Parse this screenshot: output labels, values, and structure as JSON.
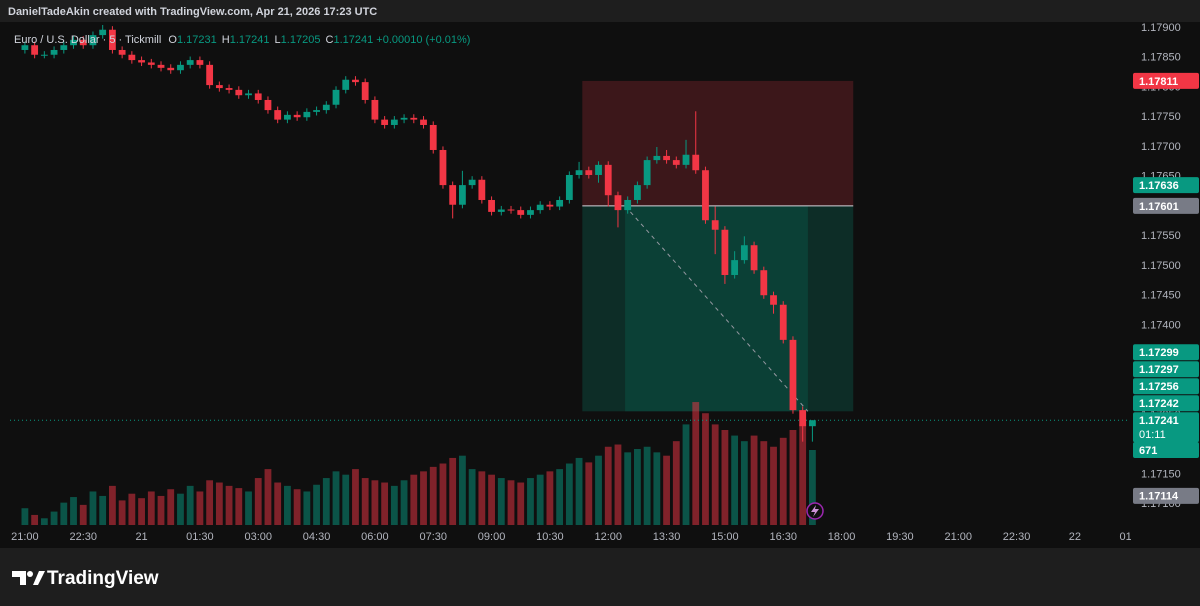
{
  "header": {
    "attribution": "DanielTadeAkin created with TradingView.com, Apr 21, 2026 17:23 UTC"
  },
  "footer": {
    "logo": "TradingView"
  },
  "chart_data": {
    "type": "candlestick",
    "symbol": "Euro / U.S. Dollar · 5 · Tickmill",
    "ohlc_letters": [
      "O",
      "H",
      "L",
      "C"
    ],
    "change": "+0.00010 (+0.01%)",
    "up_color": "#089981",
    "down_color": "#f23645",
    "x": [
      0,
      15,
      30,
      45,
      60,
      75,
      90,
      105,
      120,
      135,
      150,
      165,
      180,
      195,
      210,
      225,
      240,
      255,
      270,
      285,
      300,
      315,
      330,
      345,
      360,
      375,
      390,
      405,
      420,
      435,
      450,
      465,
      480,
      495,
      510,
      525,
      540,
      555,
      570,
      585,
      600,
      615,
      630,
      645,
      660,
      675,
      690,
      705,
      720,
      735,
      750,
      765,
      780,
      795,
      810,
      825,
      840,
      855,
      870,
      885,
      900,
      915,
      930,
      945,
      960,
      975,
      990,
      1005,
      1020,
      1035,
      1050,
      1065,
      1080,
      1095,
      1110,
      1125,
      1140,
      1155,
      1170,
      1185,
      1200,
      1215
    ],
    "open": [
      1.17863,
      1.17871,
      1.17855,
      1.17855,
      1.17863,
      1.17871,
      1.1788,
      1.17871,
      1.17888,
      1.17897,
      1.17863,
      1.17855,
      1.17846,
      1.17842,
      1.17838,
      1.17833,
      1.17829,
      1.17838,
      1.17846,
      1.17838,
      1.17804,
      1.17799,
      1.17796,
      1.17787,
      1.1779,
      1.17779,
      1.17762,
      1.17746,
      1.17754,
      1.1775,
      1.17759,
      1.17762,
      1.17771,
      1.17796,
      1.17813,
      1.17809,
      1.17779,
      1.17746,
      1.17737,
      1.17746,
      1.17749,
      1.17746,
      1.17737,
      1.17695,
      1.17636,
      1.17603,
      1.17636,
      1.17645,
      1.17611,
      1.17591,
      1.17595,
      1.17594,
      1.17586,
      1.17594,
      1.17603,
      1.176,
      1.17611,
      1.17653,
      1.17661,
      1.17653,
      1.1767,
      1.17619,
      1.17594,
      1.17611,
      1.17636,
      1.17678,
      1.17685,
      1.17678,
      1.1767,
      1.17687,
      1.17661,
      1.17577,
      1.17561,
      1.17485,
      1.1751,
      1.17535,
      1.17493,
      1.17451,
      1.17435,
      1.17376,
      1.17258,
      1.17231
    ],
    "high": [
      1.17877,
      1.17877,
      1.17861,
      1.17869,
      1.17877,
      1.17886,
      1.17886,
      1.17894,
      1.17905,
      1.17903,
      1.17869,
      1.17861,
      1.17852,
      1.17848,
      1.17844,
      1.17839,
      1.17844,
      1.17852,
      1.17852,
      1.17844,
      1.1781,
      1.17805,
      1.17802,
      1.17796,
      1.17796,
      1.17785,
      1.17768,
      1.1776,
      1.1776,
      1.17765,
      1.17768,
      1.17777,
      1.17802,
      1.17819,
      1.17819,
      1.17815,
      1.17785,
      1.17752,
      1.17752,
      1.17755,
      1.17755,
      1.17752,
      1.17743,
      1.17701,
      1.17642,
      1.1766,
      1.17651,
      1.17651,
      1.17617,
      1.17601,
      1.17601,
      1.176,
      1.176,
      1.17609,
      1.17609,
      1.17617,
      1.17659,
      1.17675,
      1.17667,
      1.17676,
      1.17676,
      1.17625,
      1.17617,
      1.17642,
      1.17684,
      1.177,
      1.17695,
      1.17684,
      1.17712,
      1.1776,
      1.17667,
      1.176,
      1.17567,
      1.17525,
      1.1755,
      1.17541,
      1.17499,
      1.17457,
      1.17441,
      1.17382,
      1.17264,
      1.17241
    ],
    "low": [
      1.17857,
      1.17849,
      1.17849,
      1.17849,
      1.17857,
      1.17865,
      1.17865,
      1.17865,
      1.17882,
      1.17857,
      1.17849,
      1.1784,
      1.17836,
      1.17832,
      1.17827,
      1.17823,
      1.17823,
      1.17832,
      1.17832,
      1.17798,
      1.17793,
      1.1779,
      1.17781,
      1.17781,
      1.17773,
      1.17756,
      1.1774,
      1.1774,
      1.17744,
      1.17744,
      1.17753,
      1.17756,
      1.17765,
      1.1779,
      1.17803,
      1.17773,
      1.1774,
      1.17731,
      1.17731,
      1.1774,
      1.1774,
      1.17731,
      1.17689,
      1.1763,
      1.1758,
      1.17597,
      1.1763,
      1.17605,
      1.17585,
      1.17585,
      1.17588,
      1.1758,
      1.1758,
      1.17588,
      1.17594,
      1.17594,
      1.17605,
      1.17647,
      1.17647,
      1.1764,
      1.176,
      1.17565,
      1.17588,
      1.17605,
      1.1763,
      1.17672,
      1.17672,
      1.17664,
      1.17664,
      1.17655,
      1.17571,
      1.1752,
      1.1747,
      1.17479,
      1.17504,
      1.17487,
      1.17445,
      1.1742,
      1.1737,
      1.17252,
      1.17205,
      1.17205
    ],
    "close": [
      1.17871,
      1.17855,
      1.17855,
      1.17863,
      1.17871,
      1.1788,
      1.17871,
      1.17888,
      1.17897,
      1.17863,
      1.17855,
      1.17846,
      1.17842,
      1.17838,
      1.17833,
      1.17829,
      1.17838,
      1.17846,
      1.17838,
      1.17804,
      1.17799,
      1.17796,
      1.17787,
      1.1779,
      1.17779,
      1.17762,
      1.17746,
      1.17754,
      1.1775,
      1.17759,
      1.17762,
      1.17771,
      1.17796,
      1.17813,
      1.17809,
      1.17779,
      1.17746,
      1.17737,
      1.17746,
      1.17749,
      1.17746,
      1.17737,
      1.17695,
      1.17636,
      1.17603,
      1.17636,
      1.17645,
      1.17611,
      1.17591,
      1.17595,
      1.17594,
      1.17586,
      1.17594,
      1.17603,
      1.176,
      1.17611,
      1.17653,
      1.17661,
      1.17653,
      1.1767,
      1.17619,
      1.17594,
      1.17611,
      1.17636,
      1.17678,
      1.17685,
      1.17678,
      1.1767,
      1.17687,
      1.17661,
      1.17577,
      1.17561,
      1.17485,
      1.1751,
      1.17535,
      1.17493,
      1.17451,
      1.17435,
      1.17376,
      1.17258,
      1.17231,
      1.17241
    ],
    "volume": [
      150,
      90,
      60,
      120,
      200,
      250,
      180,
      300,
      260,
      350,
      220,
      280,
      240,
      300,
      260,
      320,
      280,
      350,
      300,
      400,
      380,
      350,
      330,
      300,
      420,
      500,
      380,
      350,
      320,
      300,
      360,
      420,
      480,
      450,
      500,
      420,
      400,
      380,
      350,
      400,
      450,
      480,
      520,
      550,
      600,
      620,
      500,
      480,
      450,
      420,
      400,
      380,
      420,
      450,
      480,
      500,
      550,
      600,
      560,
      620,
      700,
      720,
      650,
      680,
      700,
      650,
      620,
      750,
      900,
      1100,
      1000,
      900,
      850,
      800,
      750,
      800,
      750,
      700,
      780,
      850,
      900,
      671
    ],
    "volume_lim": [
      0,
      4500
    ],
    "xlim": [
      -23,
      1705
    ],
    "xticks": [
      {
        "value": 0,
        "label": "21:00"
      },
      {
        "value": 90,
        "label": "22:30"
      },
      {
        "value": 180,
        "label": "21"
      },
      {
        "value": 270,
        "label": "01:30"
      },
      {
        "value": 360,
        "label": "03:00"
      },
      {
        "value": 450,
        "label": "04:30"
      },
      {
        "value": 540,
        "label": "06:00"
      },
      {
        "value": 630,
        "label": "07:30"
      },
      {
        "value": 720,
        "label": "09:00"
      },
      {
        "value": 810,
        "label": "10:30"
      },
      {
        "value": 900,
        "label": "12:00"
      },
      {
        "value": 990,
        "label": "13:30"
      },
      {
        "value": 1080,
        "label": "15:00"
      },
      {
        "value": 1170,
        "label": "16:30"
      },
      {
        "value": 1260,
        "label": "18:00"
      },
      {
        "value": 1350,
        "label": "19:30"
      },
      {
        "value": 1440,
        "label": "21:00"
      },
      {
        "value": 1530,
        "label": "22:30"
      },
      {
        "value": 1620,
        "label": "22"
      },
      {
        "value": 1710,
        "label": "01:30"
      }
    ],
    "ylim": [
      1.17065,
      1.1791
    ],
    "yticks": [
      {
        "value": 1.171,
        "label": "1.17100"
      },
      {
        "value": 1.1715,
        "label": "1.17150"
      },
      {
        "value": 1.172,
        "label": "1.17200"
      },
      {
        "value": 1.1725,
        "label": "1.17250"
      },
      {
        "value": 1.173,
        "label": "1.17300"
      },
      {
        "value": 1.1735,
        "label": "1.17350"
      },
      {
        "value": 1.174,
        "label": "1.17400"
      },
      {
        "value": 1.1745,
        "label": "1.17450"
      },
      {
        "value": 1.175,
        "label": "1.17500"
      },
      {
        "value": 1.1755,
        "label": "1.17550"
      },
      {
        "value": 1.176,
        "label": "1.17600"
      },
      {
        "value": 1.1765,
        "label": "1.17650"
      },
      {
        "value": 1.177,
        "label": "1.17700"
      },
      {
        "value": 1.1775,
        "label": "1.17750"
      },
      {
        "value": 1.178,
        "label": "1.17800"
      },
      {
        "value": 1.1785,
        "label": "1.17850"
      },
      {
        "value": 1.179,
        "label": "1.17900"
      }
    ],
    "grid": false,
    "position": {
      "entry": 1.17601,
      "stop": 1.17811,
      "target": 1.17256,
      "x": [
        860,
        1278
      ],
      "trade_x": [
        926,
        1208
      ],
      "entry_color": "#787b86"
    },
    "last_price": 1.17241,
    "countdown": "01:11",
    "price_labels": [
      {
        "value": 1.17636,
        "color": "#089981"
      },
      {
        "value": 1.17299,
        "color": "#089981"
      },
      {
        "value": 1.17297,
        "color": "#089981"
      },
      {
        "value": 1.17242,
        "color": "#089981"
      },
      {
        "value": 1.17114,
        "color": "#787b86"
      }
    ]
  }
}
